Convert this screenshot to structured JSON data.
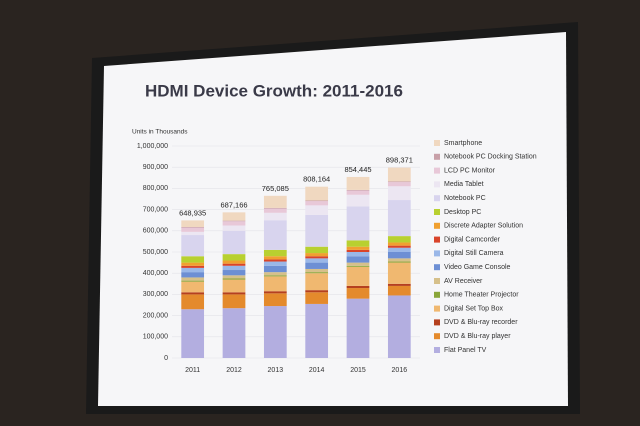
{
  "chart_data": {
    "type": "stacked-bar",
    "title": "HDMI Device Growth: 2011-2016",
    "y_label": "Units in Thousands",
    "categories": [
      "2011",
      "2012",
      "2013",
      "2014",
      "2015",
      "2016"
    ],
    "ylim": [
      0,
      1000000
    ],
    "yticks": [
      0,
      {
        "value": 100000,
        "label": "100,000"
      },
      {
        "value": 200000,
        "label": "200,000"
      },
      {
        "value": 300000,
        "label": "300,000"
      },
      {
        "value": 400000,
        "label": "400,000"
      },
      {
        "value": 500000,
        "label": "500,000"
      },
      {
        "value": 600000,
        "label": "600,000"
      },
      {
        "value": 700000,
        "label": "700,000"
      },
      {
        "value": 800000,
        "label": "800,000"
      },
      {
        "value": 900000,
        "label": "900,000"
      },
      {
        "value": 1000000,
        "label": "1,000,000"
      }
    ],
    "grid": true,
    "totals": {
      "values": [
        648935,
        687166,
        765085,
        808164,
        854445,
        898371
      ],
      "value_labels": [
        "648,935",
        "687,166",
        "765,085",
        "808,164",
        "854,445",
        "898,371"
      ]
    },
    "series": [
      {
        "name": "Flat Panel TV",
        "color": "#b3aee0",
        "values": [
          230000,
          235000,
          245000,
          255000,
          280000,
          295000
        ]
      },
      {
        "name": "DVD & Blu-ray player",
        "color": "#e48a2c",
        "values": [
          70000,
          65000,
          60000,
          55000,
          50000,
          45000
        ]
      },
      {
        "name": "DVD & Blu-ray recorder",
        "color": "#b5401f",
        "values": [
          10000,
          10000,
          10000,
          10000,
          10000,
          10000
        ]
      },
      {
        "name": "Digital Set Top Box",
        "color": "#f0b870",
        "values": [
          50000,
          60000,
          70000,
          80000,
          90000,
          100000
        ]
      },
      {
        "name": "Home Theater Projector",
        "color": "#8aa63a",
        "values": [
          5000,
          5000,
          5000,
          5000,
          5000,
          5000
        ]
      },
      {
        "name": "AV Receiver",
        "color": "#d6c08a",
        "values": [
          15000,
          15000,
          15000,
          15000,
          15000,
          15000
        ]
      },
      {
        "name": "Video Game Console",
        "color": "#6d8fd4",
        "values": [
          25000,
          25000,
          30000,
          30000,
          30000,
          30000
        ]
      },
      {
        "name": "Digital Still Camera",
        "color": "#9ab7e8",
        "values": [
          20000,
          20000,
          20000,
          20000,
          20000,
          20000
        ]
      },
      {
        "name": "Digital Camcorder",
        "color": "#d9442a",
        "values": [
          10000,
          10000,
          10000,
          10000,
          10000,
          10000
        ]
      },
      {
        "name": "Discrete Adapter Solution",
        "color": "#f0a030",
        "values": [
          15000,
          15000,
          15000,
          15000,
          15000,
          15000
        ]
      },
      {
        "name": "Desktop PC",
        "color": "#b8d030",
        "values": [
          30000,
          30000,
          30000,
          30000,
          30000,
          30000
        ]
      },
      {
        "name": "Notebook PC",
        "color": "#d8d4ee",
        "values": [
          100000,
          110000,
          140000,
          150000,
          160000,
          170000
        ]
      },
      {
        "name": "Media Tablet",
        "color": "#ece6f2",
        "values": [
          15000,
          25000,
          35000,
          45000,
          55000,
          65000
        ]
      },
      {
        "name": "LCD PC Monitor",
        "color": "#e8c8d8",
        "values": [
          20000,
          20000,
          20000,
          20000,
          20000,
          20000
        ]
      },
      {
        "name": "Notebook PC Docking Station",
        "color": "#c8a0a8",
        "values": [
          3000,
          3000,
          3000,
          3000,
          3000,
          3000
        ]
      },
      {
        "name": "Smartphone",
        "color": "#f0d8c0",
        "values": [
          31000,
          39000,
          57000,
          65000,
          61000,
          65000
        ]
      }
    ]
  }
}
